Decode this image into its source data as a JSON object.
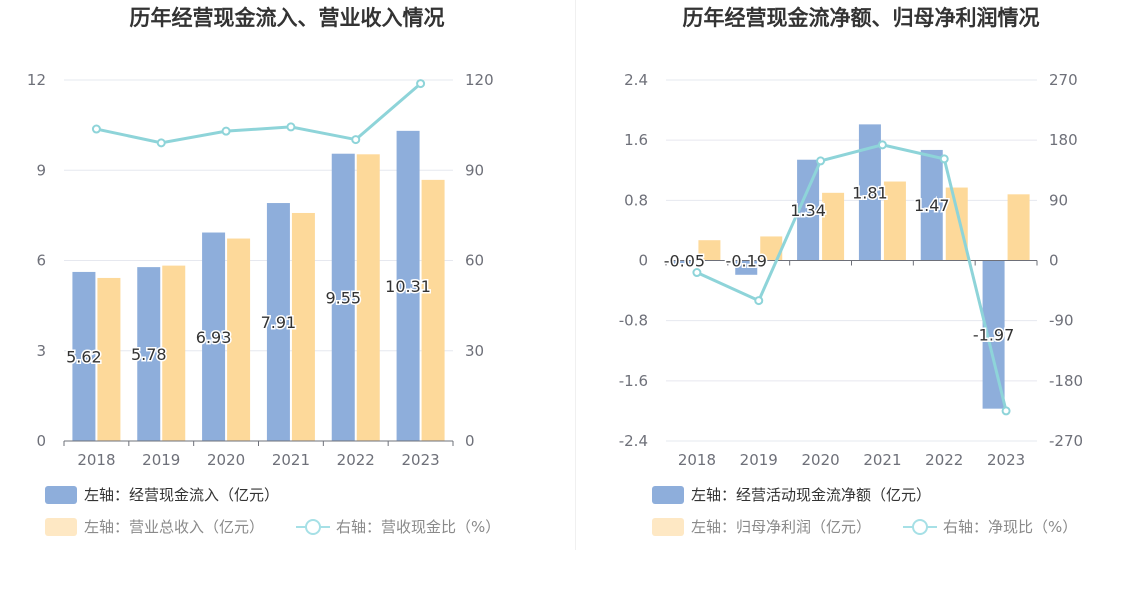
{
  "chart_data": [
    {
      "type": "bar",
      "title": "历年经营现金流入、营业收入情况",
      "categories": [
        "2018",
        "2019",
        "2020",
        "2021",
        "2022",
        "2023"
      ],
      "left_axis": {
        "ylim": [
          0,
          12
        ],
        "ticks": [
          "0",
          "3",
          "6",
          "9",
          "12"
        ]
      },
      "right_axis": {
        "ylim": [
          0,
          120
        ],
        "ticks": [
          "0",
          "30",
          "60",
          "90",
          "120"
        ]
      },
      "series": [
        {
          "name": "左轴：经营现金流入（亿元）",
          "kind": "bar",
          "axis": "left",
          "color": "#8eaedb",
          "values": [
            5.62,
            5.78,
            6.93,
            7.91,
            9.55,
            10.31
          ],
          "labels": [
            "5.62",
            "5.78",
            "6.93",
            "7.91",
            "9.55",
            "10.31"
          ]
        },
        {
          "name": "左轴：营业总收入（亿元）",
          "kind": "bar",
          "axis": "left",
          "color": "#fdd99a",
          "values": [
            5.42,
            5.83,
            6.73,
            7.58,
            9.53,
            8.68
          ]
        },
        {
          "name": "右轴：营收现金比（%）",
          "kind": "line",
          "axis": "right",
          "color": "#8ed4d9",
          "values": [
            103.7,
            99.1,
            103.0,
            104.4,
            100.2,
            118.8
          ]
        }
      ],
      "grid": true,
      "legend_position": "bottom-left"
    },
    {
      "type": "bar",
      "title": "历年经营现金流净额、归母净利润情况",
      "categories": [
        "2018",
        "2019",
        "2020",
        "2021",
        "2022",
        "2023"
      ],
      "left_axis": {
        "ylim": [
          -2.4,
          2.4
        ],
        "ticks": [
          "-2.4",
          "-1.6",
          "-0.8",
          "0",
          "0.8",
          "1.6",
          "2.4"
        ]
      },
      "right_axis": {
        "ylim": [
          -270,
          270
        ],
        "ticks": [
          "-270",
          "-180",
          "-90",
          "0",
          "90",
          "180",
          "270"
        ]
      },
      "series": [
        {
          "name": "左轴：经营活动现金流净额（亿元）",
          "kind": "bar",
          "axis": "left",
          "color": "#8eaedb",
          "values": [
            -0.05,
            -0.19,
            1.34,
            1.81,
            1.47,
            -1.97
          ],
          "labels": [
            "-0.05",
            "-0.19",
            "1.34",
            "1.81",
            "1.47",
            "-1.97"
          ]
        },
        {
          "name": "左轴：归母净利润（亿元）",
          "kind": "bar",
          "axis": "left",
          "color": "#fdd99a",
          "values": [
            0.27,
            0.32,
            0.9,
            1.05,
            0.97,
            0.88
          ]
        },
        {
          "name": "右轴：净现比（%）",
          "kind": "line",
          "axis": "right",
          "color": "#8ed4d9",
          "values": [
            -18,
            -60,
            149,
            173,
            152,
            -225
          ]
        }
      ],
      "grid": true,
      "legend_position": "bottom-left"
    }
  ]
}
